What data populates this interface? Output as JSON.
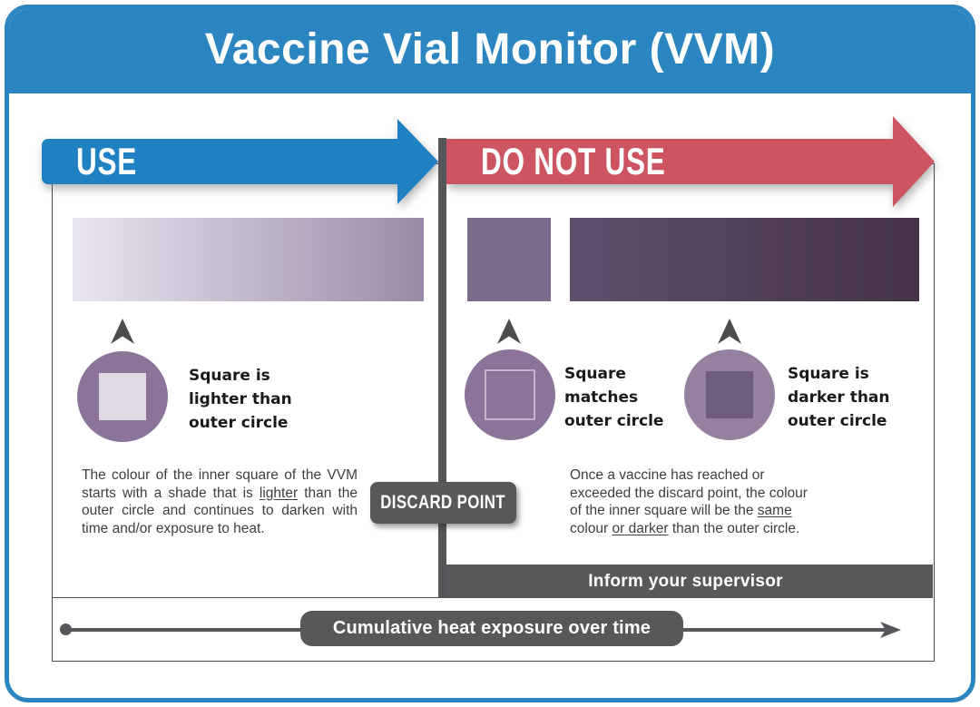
{
  "header": {
    "title": "Vaccine Vial Monitor (VVM)"
  },
  "colors": {
    "frame_blue": "#2b85c0",
    "use_arrow_blue": "#1f80c2",
    "do_not_use_red": "#cd5562",
    "label_gray": "#58585a",
    "divider_gray": "#555659",
    "box_border_gray": "#4a4a4b",
    "circle_purple": "#8b7399",
    "circle_purple_light": "#95809f",
    "inner_square_light": "#ded9e5",
    "inner_square_dark": "#6e5d7a",
    "match_square_outline": "#c2b3cc",
    "gradient_left": [
      "#eae6f1",
      "#9a8aa7"
    ],
    "solid_bar_purple": "#7d6b8e",
    "gradient_right": [
      "#5f4f6d",
      "#443346"
    ]
  },
  "use_section": {
    "arrow_label": "USE",
    "state": {
      "caption": "Square is lighter than outer circle"
    },
    "description_segments": [
      {
        "text": "The colour of the inner square of the VVM  starts with a shade that is "
      },
      {
        "text": "lighter",
        "underline": true
      },
      {
        "text": " than the outer circle and continues to darken with time and/or exposure to heat."
      }
    ]
  },
  "do_not_use_section": {
    "arrow_label": "DO NOT USE",
    "states": [
      {
        "caption": "Square matches outer circle"
      },
      {
        "caption": "Square is darker than outer circle"
      }
    ],
    "description_segments": [
      {
        "text": "Once a vaccine has reached or exceeded the discard point, the colour of the inner square will be the "
      },
      {
        "text": "same",
        "underline": true
      },
      {
        "text": " colour "
      },
      {
        "text": "or darker",
        "underline": true
      },
      {
        "text": " than the outer circle."
      }
    ],
    "supervisor_banner": "Inform your supervisor"
  },
  "discard_point": {
    "label": "DISCARD POINT"
  },
  "timeline": {
    "label": "Cumulative heat exposure over time"
  }
}
